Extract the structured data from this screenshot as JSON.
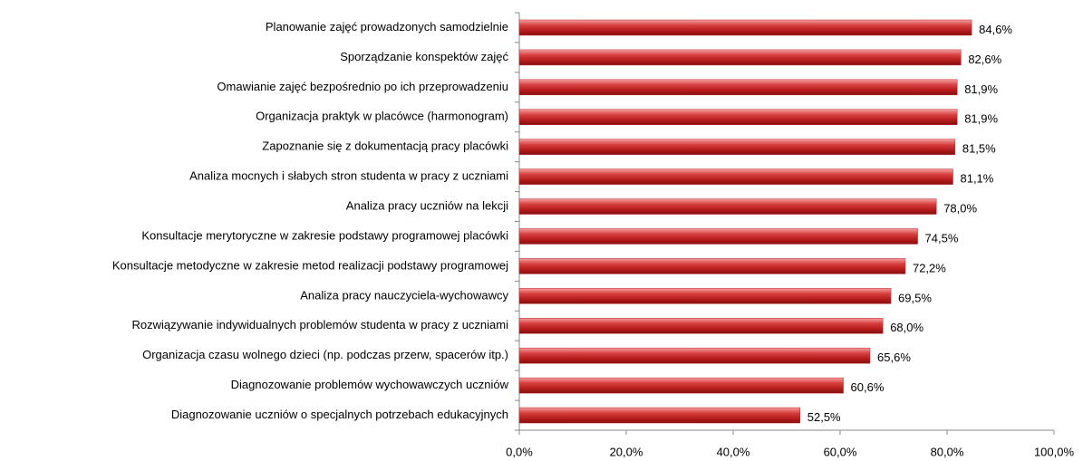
{
  "chart_data": {
    "type": "bar",
    "orientation": "horizontal",
    "categories": [
      "Planowanie zajęć prowadzonych samodzielnie",
      "Sporządzanie konspektów zajęć",
      "Omawianie zajęć bezpośrednio po ich przeprowadzeniu",
      "Organizacja praktyk w placówce (harmonogram)",
      "Zapoznanie się z dokumentacją pracy placówki",
      "Analiza mocnych i słabych stron studenta w pracy z uczniami",
      "Analiza pracy uczniów na lekcji",
      "Konsultacje merytoryczne w zakresie podstawy programowej placówki",
      "Konsultacje metodyczne w zakresie metod realizacji podstawy programowej",
      "Analiza pracy nauczyciela-wychowawcy",
      "Rozwiązywanie indywidualnych problemów studenta w pracy z uczniami",
      "Organizacja czasu wolnego dzieci (np. podczas przerw, spacerów itp.)",
      "Diagnozowanie problemów wychowawczych uczniów",
      "Diagnozowanie uczniów o specjalnych potrzebach edukacyjnych"
    ],
    "values": [
      84.6,
      82.6,
      81.9,
      81.9,
      81.5,
      81.1,
      78.0,
      74.5,
      72.2,
      69.5,
      68.0,
      65.6,
      60.6,
      52.5
    ],
    "value_labels": [
      "84,6%",
      "82,6%",
      "81,9%",
      "81,9%",
      "81,5%",
      "81,1%",
      "78,0%",
      "74,5%",
      "72,2%",
      "69,5%",
      "68,0%",
      "65,6%",
      "60,6%",
      "52,5%"
    ],
    "color": "#c0282d",
    "xlim": [
      0,
      100
    ],
    "xticks": [
      {
        "value": 0,
        "label": "0,0%"
      },
      {
        "value": 20,
        "label": "20,0%"
      },
      {
        "value": 40,
        "label": "40,0%"
      },
      {
        "value": 60,
        "label": "60,0%"
      },
      {
        "value": 80,
        "label": "80,0%"
      },
      {
        "value": 100,
        "label": "100,0%"
      }
    ],
    "grid": false
  }
}
